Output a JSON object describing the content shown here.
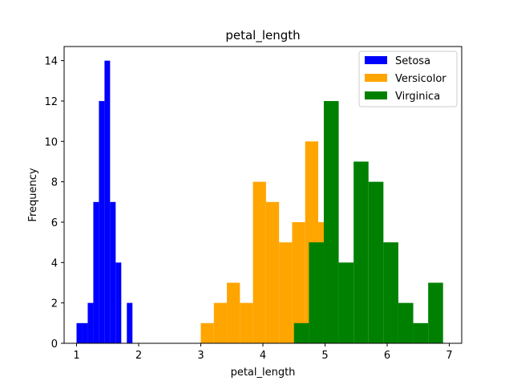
{
  "chart_data": {
    "type": "bar",
    "subtype": "histogram",
    "title": "petal_length",
    "xlabel": "petal_length",
    "ylabel": "Frequency",
    "xlim": [
      0.8,
      7.2
    ],
    "ylim": [
      0,
      14.7
    ],
    "xticks": [
      1,
      2,
      3,
      4,
      5,
      6,
      7
    ],
    "yticks": [
      0,
      2,
      4,
      6,
      8,
      10,
      12,
      14
    ],
    "legend_position": "top-right",
    "series": [
      {
        "name": "Setosa",
        "color": "#0000ff",
        "bin_edges": [
          1.0,
          1.09,
          1.18,
          1.27,
          1.36,
          1.45,
          1.54,
          1.63,
          1.72,
          1.81,
          1.9
        ],
        "counts": [
          1,
          1,
          2,
          7,
          12,
          14,
          7,
          4,
          0,
          2
        ]
      },
      {
        "name": "Versicolor",
        "color": "#ffa500",
        "bin_edges": [
          3.0,
          3.21,
          3.42,
          3.63,
          3.84,
          4.05,
          4.26,
          4.47,
          4.68,
          4.89,
          5.1
        ],
        "counts": [
          1,
          2,
          3,
          2,
          8,
          7,
          5,
          6,
          10,
          6
        ]
      },
      {
        "name": "Virginica",
        "color": "#008000",
        "bin_edges": [
          4.5,
          4.74,
          4.98,
          5.22,
          5.46,
          5.7,
          5.94,
          6.18,
          6.42,
          6.66,
          6.9
        ],
        "counts": [
          1,
          5,
          12,
          4,
          9,
          8,
          5,
          2,
          1,
          3
        ]
      }
    ]
  }
}
